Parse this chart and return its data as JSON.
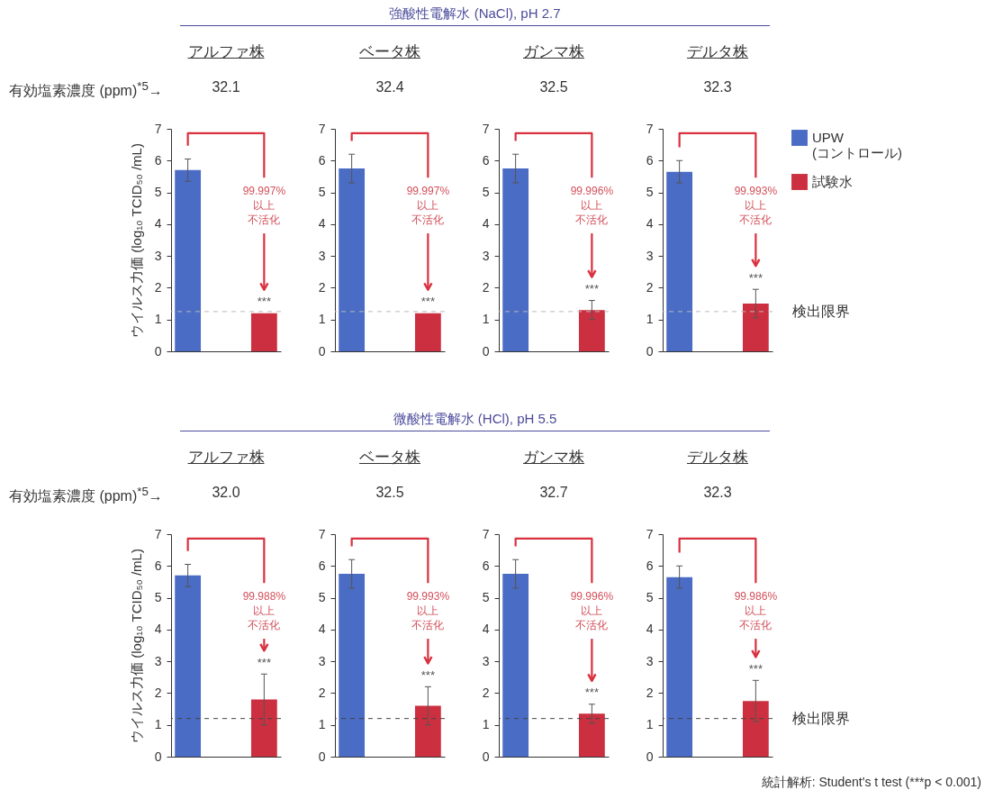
{
  "chart_data": [
    {
      "type": "bar",
      "title": "アルファ株",
      "subtitle": "32.1",
      "ylabel": "ウイルス力価 (log₁₀ TCID₅₀ /mL)",
      "categories": [
        null
      ],
      "ylim": [
        0,
        7
      ],
      "yticks": [
        0,
        1,
        2,
        3,
        4,
        5,
        6,
        7
      ],
      "tick_labels": "y",
      "series": [
        {
          "color": "#4a6cc4",
          "values": [
            5.7
          ],
          "errors": [
            0.35
          ]
        },
        {
          "color": "#cc3040",
          "values": [
            1.2
          ]
        }
      ],
      "ref_lines": [
        {
          "axis": "y",
          "value": 1.25,
          "color": "#bbbbbb",
          "line_style": "dashed"
        }
      ],
      "annotations": [
        "強酸性電解水 (NaCl), pH 2.7",
        "有効塩素濃度 (ppm)$^{*5}$→",
        "99.997%",
        "以上",
        "不活化",
        "***"
      ]
    },
    {
      "type": "bar",
      "title": "ベータ株",
      "subtitle": "32.4",
      "categories": [
        null
      ],
      "ylim": [
        0,
        7
      ],
      "yticks": [
        0,
        1,
        2,
        3,
        4,
        5,
        6,
        7
      ],
      "tick_labels": "y",
      "series": [
        {
          "color": "#4a6cc4",
          "values": [
            5.75
          ],
          "errors": [
            0.45
          ]
        },
        {
          "color": "#cc3040",
          "values": [
            1.2
          ]
        }
      ],
      "ref_lines": [
        {
          "axis": "y",
          "value": 1.25,
          "color": "#bbbbbb",
          "line_style": "dashed"
        }
      ],
      "annotations": [
        "99.997%",
        "以上",
        "不活化",
        "***"
      ]
    },
    {
      "type": "bar",
      "title": "ガンマ株",
      "subtitle": "32.5",
      "categories": [
        null
      ],
      "ylim": [
        0,
        7
      ],
      "yticks": [
        0,
        1,
        2,
        3,
        4,
        5,
        6,
        7
      ],
      "tick_labels": "y",
      "series": [
        {
          "color": "#4a6cc4",
          "values": [
            5.75
          ],
          "errors": [
            0.45
          ]
        },
        {
          "color": "#cc3040",
          "values": [
            1.3
          ],
          "errors": [
            0.3
          ]
        }
      ],
      "ref_lines": [
        {
          "axis": "y",
          "value": 1.25,
          "color": "#bbbbbb",
          "line_style": "dashed"
        }
      ],
      "annotations": [
        "99.996%",
        "以上",
        "不活化",
        "***"
      ]
    },
    {
      "type": "bar",
      "title": "デルタ株",
      "subtitle": "32.3",
      "categories": [
        null
      ],
      "ylim": [
        0,
        7
      ],
      "yticks": [
        0,
        1,
        2,
        3,
        4,
        5,
        6,
        7
      ],
      "tick_labels": "y",
      "legend": "right",
      "series": [
        {
          "name": "UPW\n(コントロール)",
          "color": "#4a6cc4",
          "values": [
            5.65
          ],
          "errors": [
            0.35
          ]
        },
        {
          "name": "試験水",
          "color": "#cc3040",
          "values": [
            1.5
          ],
          "errors": [
            0.45
          ]
        }
      ],
      "ref_lines": [
        {
          "axis": "y",
          "value": 1.25,
          "label": "検出限界",
          "color": "#bbbbbb",
          "line_style": "dashed"
        }
      ],
      "annotations": [
        "99.993%",
        "以上",
        "不活化",
        "***"
      ]
    },
    {
      "type": "bar",
      "title": "アルファ株",
      "subtitle": "32.0",
      "ylabel": "ウイルス力価 (log₁₀ TCID₅₀ /mL)",
      "categories": [
        null
      ],
      "ylim": [
        0,
        7
      ],
      "yticks": [
        0,
        1,
        2,
        3,
        4,
        5,
        6,
        7
      ],
      "tick_labels": "y",
      "series": [
        {
          "color": "#4a6cc4",
          "values": [
            5.7
          ],
          "errors": [
            0.35
          ]
        },
        {
          "color": "#cc3040",
          "values": [
            1.8
          ],
          "errors": [
            0.8
          ]
        }
      ],
      "ref_lines": [
        {
          "axis": "y",
          "value": 1.2,
          "color": "#444444",
          "line_style": "dashed"
        }
      ],
      "annotations": [
        "微酸性電解水 (HCl), pH 5.5",
        "有効塩素濃度 (ppm)$^{*5}$→",
        "99.988%",
        "以上",
        "不活化",
        "***"
      ]
    },
    {
      "type": "bar",
      "title": "ベータ株",
      "subtitle": "32.5",
      "categories": [
        null
      ],
      "ylim": [
        0,
        7
      ],
      "yticks": [
        0,
        1,
        2,
        3,
        4,
        5,
        6,
        7
      ],
      "tick_labels": "y",
      "series": [
        {
          "color": "#4a6cc4",
          "values": [
            5.75
          ],
          "errors": [
            0.45
          ]
        },
        {
          "color": "#cc3040",
          "values": [
            1.6
          ],
          "errors": [
            0.6
          ]
        }
      ],
      "ref_lines": [
        {
          "axis": "y",
          "value": 1.2,
          "color": "#444444",
          "line_style": "dashed"
        }
      ],
      "annotations": [
        "99.993%",
        "以上",
        "不活化",
        "***"
      ]
    },
    {
      "type": "bar",
      "title": "ガンマ株",
      "subtitle": "32.7",
      "categories": [
        null
      ],
      "ylim": [
        0,
        7
      ],
      "yticks": [
        0,
        1,
        2,
        3,
        4,
        5,
        6,
        7
      ],
      "tick_labels": "y",
      "series": [
        {
          "color": "#4a6cc4",
          "values": [
            5.75
          ],
          "errors": [
            0.45
          ]
        },
        {
          "color": "#cc3040",
          "values": [
            1.35
          ],
          "errors": [
            0.3
          ]
        }
      ],
      "ref_lines": [
        {
          "axis": "y",
          "value": 1.2,
          "color": "#444444",
          "line_style": "dashed"
        }
      ],
      "annotations": [
        "99.996%",
        "以上",
        "不活化",
        "***"
      ]
    },
    {
      "type": "bar",
      "title": "デルタ株",
      "subtitle": "32.3",
      "categories": [
        null
      ],
      "ylim": [
        0,
        7
      ],
      "yticks": [
        0,
        1,
        2,
        3,
        4,
        5,
        6,
        7
      ],
      "tick_labels": "y",
      "series": [
        {
          "color": "#4a6cc4",
          "values": [
            5.65
          ],
          "errors": [
            0.35
          ]
        },
        {
          "color": "#cc3040",
          "values": [
            1.75
          ],
          "errors": [
            0.65
          ]
        }
      ],
      "ref_lines": [
        {
          "axis": "y",
          "value": 1.2,
          "label": "検出限界",
          "color": "#444444",
          "line_style": "dashed"
        }
      ],
      "annotations": [
        "99.986%",
        "以上",
        "不活化",
        "***",
        "統計解析: Student's t test (***p < 0.001)"
      ]
    }
  ]
}
